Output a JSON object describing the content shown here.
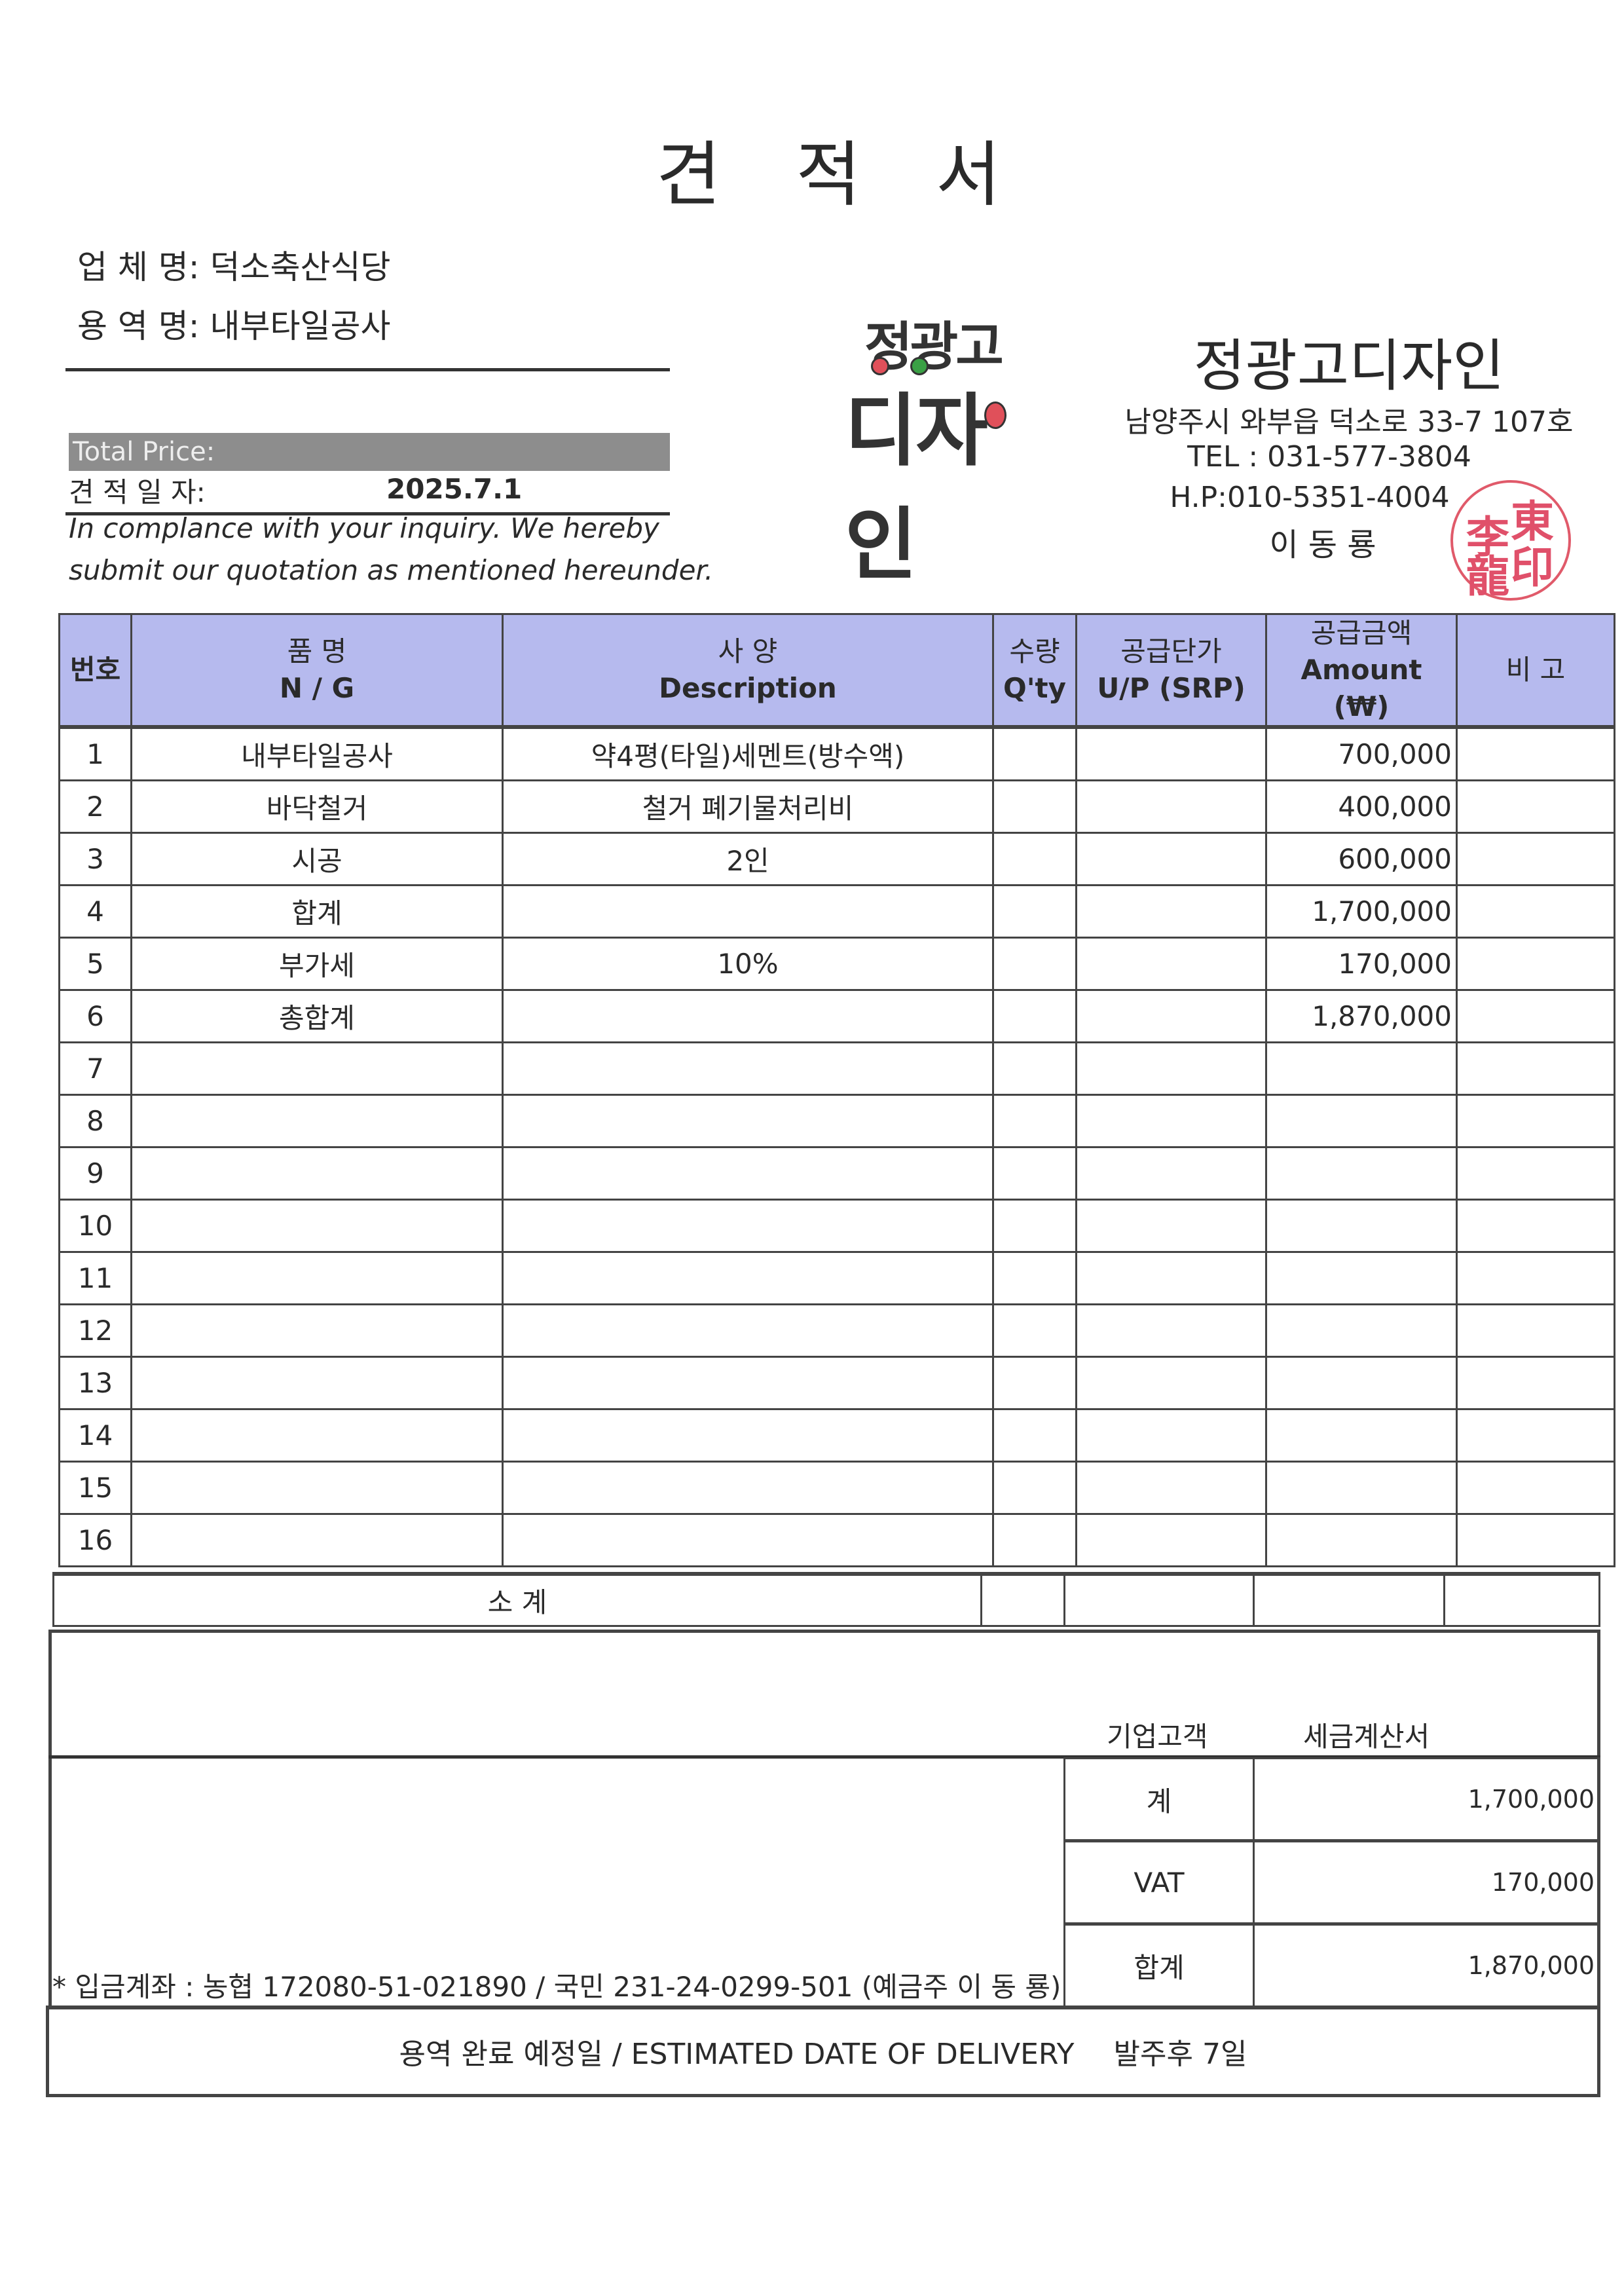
{
  "title": "견 적 서",
  "client": {
    "company_label": "업 체 명:",
    "company": "덕소축산식당",
    "service_label": "용 역 명:",
    "service": "내부타일공사"
  },
  "total_price_label": "Total Price:",
  "date_label": "견 적 일 자:",
  "date": "2025.7.1",
  "notice_line1": "In complance with your  inquiry. We hereby",
  "notice_line2": "submit our quotation as mentioned hereunder.",
  "logo": {
    "line1": "정광고",
    "line2": "디자인",
    "dot_colors": [
      "#e0505a",
      "#3aa045",
      "#e0505a"
    ]
  },
  "supplier": {
    "name": "정광고디자인",
    "address": "남양주시 와부읍 덕소로 33-7 107호",
    "tel": "TEL : 031-577-3804",
    "hp": "H.P:010-5351-4004",
    "owner": "이 동 룡",
    "stamp": [
      "李",
      "東",
      "龍",
      "印"
    ],
    "stamp_color": "#e0506a"
  },
  "table": {
    "header_color": "#b6baee",
    "headers": {
      "no": "번호",
      "name_ko": "품 명",
      "name_en": "N / G",
      "desc_ko": "사 양",
      "desc_en": "Description",
      "qty_ko": "수량",
      "qty_en": "Q'ty",
      "up_ko": "공급단가",
      "up_en": "U/P (SRP)",
      "amt_ko": "공급금액",
      "amt_en": "Amount (₩)",
      "note": "비 고"
    },
    "rows": [
      {
        "no": "1",
        "name": "내부타일공사",
        "desc": "약4평(타일)세멘트(방수액)",
        "qty": "",
        "up": "",
        "amount": "700,000",
        "note": ""
      },
      {
        "no": "2",
        "name": "바닥철거",
        "desc": "철거 폐기물처리비",
        "qty": "",
        "up": "",
        "amount": "400,000",
        "note": ""
      },
      {
        "no": "3",
        "name": "시공",
        "desc": "2인",
        "qty": "",
        "up": "",
        "amount": "600,000",
        "note": ""
      },
      {
        "no": "4",
        "name": "합계",
        "desc": "",
        "qty": "",
        "up": "",
        "amount": "1,700,000",
        "note": ""
      },
      {
        "no": "5",
        "name": "부가세",
        "desc": "10%",
        "qty": "",
        "up": "",
        "amount": "170,000",
        "note": ""
      },
      {
        "no": "6",
        "name": "총합계",
        "desc": "",
        "qty": "",
        "up": "",
        "amount": "1,870,000",
        "note": ""
      },
      {
        "no": "7",
        "name": "",
        "desc": "",
        "qty": "",
        "up": "",
        "amount": "",
        "note": ""
      },
      {
        "no": "8",
        "name": "",
        "desc": "",
        "qty": "",
        "up": "",
        "amount": "",
        "note": ""
      },
      {
        "no": "9",
        "name": "",
        "desc": "",
        "qty": "",
        "up": "",
        "amount": "",
        "note": ""
      },
      {
        "no": "10",
        "name": "",
        "desc": "",
        "qty": "",
        "up": "",
        "amount": "",
        "note": ""
      },
      {
        "no": "11",
        "name": "",
        "desc": "",
        "qty": "",
        "up": "",
        "amount": "",
        "note": ""
      },
      {
        "no": "12",
        "name": "",
        "desc": "",
        "qty": "",
        "up": "",
        "amount": "",
        "note": ""
      },
      {
        "no": "13",
        "name": "",
        "desc": "",
        "qty": "",
        "up": "",
        "amount": "",
        "note": ""
      },
      {
        "no": "14",
        "name": "",
        "desc": "",
        "qty": "",
        "up": "",
        "amount": "",
        "note": ""
      },
      {
        "no": "15",
        "name": "",
        "desc": "",
        "qty": "",
        "up": "",
        "amount": "",
        "note": ""
      },
      {
        "no": "16",
        "name": "",
        "desc": "",
        "qty": "",
        "up": "",
        "amount": "",
        "note": ""
      }
    ],
    "subtotal_label": "소   계"
  },
  "summary": {
    "corporate_label": "기업고객",
    "tax_invoice_label": "세금계산서",
    "rows": [
      {
        "label": "계",
        "value": "1,700,000"
      },
      {
        "label": "VAT",
        "value": "170,000"
      },
      {
        "label": "합계",
        "value": "1,870,000"
      }
    ],
    "bank_info": "* 입금계좌 : 농협 172080-51-021890 / 국민 231-24-0299-501  (예금주 이 동 룡)"
  },
  "delivery": {
    "label": "용역 완료 예정일 / ESTIMATED DATE OF DELIVERY",
    "value": "발주후 7일"
  }
}
